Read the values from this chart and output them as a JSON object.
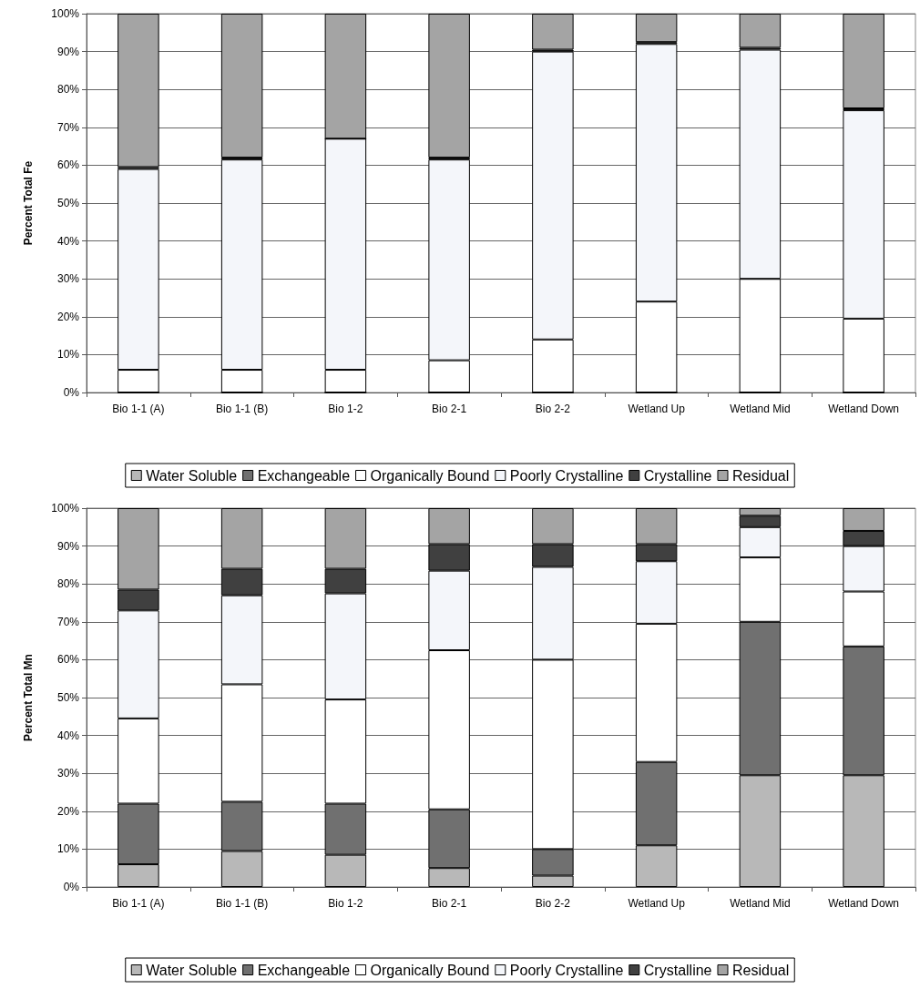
{
  "chart_data": [
    {
      "type": "bar",
      "stacked": true,
      "ylabel": "Percent Total Fe",
      "categories": [
        "Bio 1-1 (A)",
        "Bio 1-1 (B)",
        "Bio 1-2",
        "Bio 2-1",
        "Bio 2-2",
        "Wetland Up",
        "Wetland Mid",
        "Wetland Down"
      ],
      "series": [
        {
          "name": "Water Soluble",
          "color": "#b8b8b8",
          "values": [
            0,
            0,
            0,
            0,
            0,
            0,
            0,
            0
          ]
        },
        {
          "name": "Exchangeable",
          "color": "#707070",
          "values": [
            0,
            0,
            0,
            0,
            0,
            0,
            0,
            0
          ]
        },
        {
          "name": "Organically Bound",
          "color": "#ffffff",
          "values": [
            6,
            6,
            6,
            8.5,
            14,
            24,
            30,
            19.5
          ]
        },
        {
          "name": "Poorly Crystalline",
          "color": "#f4f6fa",
          "values": [
            53,
            55.5,
            61,
            53,
            76,
            68,
            60.5,
            55
          ]
        },
        {
          "name": "Crystalline",
          "color": "#404040",
          "values": [
            0.5,
            0.5,
            0,
            0.5,
            0.5,
            0.5,
            0.5,
            0.5
          ]
        },
        {
          "name": "Residual",
          "color": "#a4a4a4",
          "values": [
            40.5,
            38,
            33,
            38,
            9.5,
            7.5,
            9,
            25
          ]
        }
      ],
      "ylim": [
        0,
        100
      ],
      "yticks": [
        {
          "value": 0,
          "label": "0%"
        },
        {
          "value": 10,
          "label": "10%"
        },
        {
          "value": 20,
          "label": "20%"
        },
        {
          "value": 30,
          "label": "30%"
        },
        {
          "value": 40,
          "label": "40%"
        },
        {
          "value": 50,
          "label": "50%"
        },
        {
          "value": 60,
          "label": "60%"
        },
        {
          "value": 70,
          "label": "70%"
        },
        {
          "value": 80,
          "label": "80%"
        },
        {
          "value": 90,
          "label": "90%"
        },
        {
          "value": 100,
          "label": "100%"
        }
      ],
      "grid": "y",
      "legend": "bottom"
    },
    {
      "type": "bar",
      "stacked": true,
      "ylabel": "Percent Total Mn",
      "categories": [
        "Bio 1-1 (A)",
        "Bio 1-1 (B)",
        "Bio 1-2",
        "Bio 2-1",
        "Bio 2-2",
        "Wetland Up",
        "Wetland Mid",
        "Wetland Down"
      ],
      "series": [
        {
          "name": "Water Soluble",
          "color": "#b8b8b8",
          "values": [
            6,
            9.5,
            8.5,
            5,
            3,
            11,
            29.5,
            29.5
          ]
        },
        {
          "name": "Exchangeable",
          "color": "#707070",
          "values": [
            16,
            13,
            13.5,
            15.5,
            7,
            22,
            40.5,
            34
          ]
        },
        {
          "name": "Organically Bound",
          "color": "#ffffff",
          "values": [
            22.5,
            31,
            27.5,
            42,
            50,
            36.5,
            17,
            14.5
          ]
        },
        {
          "name": "Poorly Crystalline",
          "color": "#f4f6fa",
          "values": [
            28.5,
            23.5,
            28,
            21,
            24.5,
            16.5,
            8,
            12
          ]
        },
        {
          "name": "Crystalline",
          "color": "#404040",
          "values": [
            5.5,
            7,
            6.5,
            7,
            6,
            4.5,
            3,
            4
          ]
        },
        {
          "name": "Residual",
          "color": "#a4a4a4",
          "values": [
            21.5,
            16,
            16,
            9.5,
            9.5,
            9.5,
            2,
            6
          ]
        }
      ],
      "ylim": [
        0,
        100
      ],
      "yticks": [
        {
          "value": 0,
          "label": "0%"
        },
        {
          "value": 10,
          "label": "10%"
        },
        {
          "value": 20,
          "label": "20%"
        },
        {
          "value": 30,
          "label": "30%"
        },
        {
          "value": 40,
          "label": "40%"
        },
        {
          "value": 50,
          "label": "50%"
        },
        {
          "value": 60,
          "label": "60%"
        },
        {
          "value": 70,
          "label": "70%"
        },
        {
          "value": 80,
          "label": "80%"
        },
        {
          "value": 90,
          "label": "90%"
        },
        {
          "value": 100,
          "label": "100%"
        }
      ],
      "grid": "y",
      "legend": "bottom"
    }
  ]
}
